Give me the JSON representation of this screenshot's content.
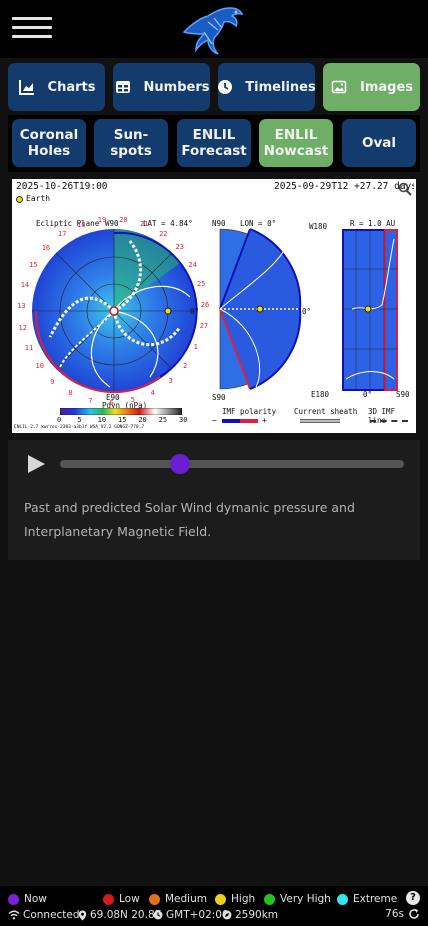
{
  "header": {
    "menu_icon": "hamburger-icon",
    "logo": "aurora-bird-logo"
  },
  "tabs": [
    {
      "label": "Charts",
      "icon": "area-chart-icon",
      "active": false
    },
    {
      "label": "Numbers",
      "icon": "table-icon",
      "active": false
    },
    {
      "label": "Timelines",
      "icon": "clock-icon",
      "active": false
    },
    {
      "label": "Images",
      "icon": "image-icon",
      "active": true
    }
  ],
  "subtabs": [
    {
      "label": "Coronal\nHoles",
      "active": false
    },
    {
      "label": "Sun-\nspots",
      "active": false
    },
    {
      "label": "ENLIL\nForecast",
      "active": false
    },
    {
      "label": "ENLIL\nNowcast",
      "active": true
    },
    {
      "label": "Oval",
      "active": false
    }
  ],
  "image": {
    "timestamp_left": "2025-10-26T19:00",
    "timestamp_right": "2025-09-29T12 +27.27 days",
    "earth_label": "Earth",
    "ecliptic_label": "Ecliptic Plane",
    "w90_label": "W90",
    "lat_label": "LAT = 4.84°",
    "n90_label": "N90",
    "lon_label": "LON = 0°",
    "w180_label": "W180",
    "r_label": "R = 1.0 AU",
    "e90_label": "E90",
    "s90_label": "S90",
    "e180_label": "E180",
    "zero_label": "0°",
    "pdyn_label": "Pdyn (nPa)",
    "scale_ticks": [
      "0",
      "5",
      "10",
      "15",
      "20",
      "25",
      "30"
    ],
    "imf_label": "IMF polarity",
    "current_sheath_label": "Current sheath",
    "imf_line_label": "3D IMF line",
    "minus": "−",
    "plus": "+",
    "model_label": "ENLIL-2.7 kwrres-2303-a3b1f WSA_V2.2 GONGZ-770.7",
    "outer_numbers": [
      "19",
      "20",
      "21",
      "22",
      "23",
      "24",
      "25",
      "26",
      "27",
      "1",
      "2",
      "3",
      "4",
      "5",
      "6",
      "7",
      "8",
      "9",
      "10",
      "11",
      "12",
      "13",
      "14",
      "15",
      "16",
      "17",
      "18"
    ]
  },
  "player": {
    "play_icon": "play-icon",
    "progress": 0.35,
    "caption": "Past and predicted Solar Wind dymanic pressure and Interplanetary Magnetic Field."
  },
  "legend": [
    {
      "label": "Now",
      "color": "#7b22d6"
    },
    {
      "label": "Low",
      "color": "#d71a1a"
    },
    {
      "label": "Medium",
      "color": "#e2731a"
    },
    {
      "label": "High",
      "color": "#e6d218"
    },
    {
      "label": "Very High",
      "color": "#1fc51f"
    },
    {
      "label": "Extreme",
      "color": "#33e6f0"
    }
  ],
  "status": {
    "connection": "Connected",
    "location": "69.08N 20.8E",
    "timezone": "GMT+02:00",
    "distance": "2590km",
    "refresh": "76s"
  }
}
